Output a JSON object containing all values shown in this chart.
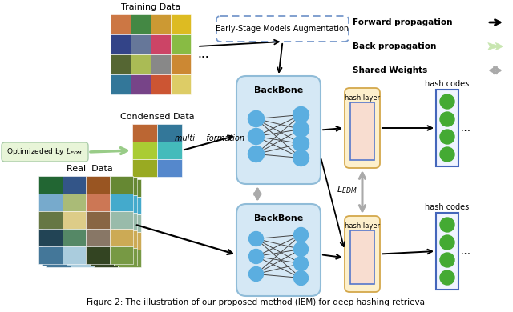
{
  "title": "Figure 2: The illustration of our proposed method (IEM) for deep hashing retrieval",
  "bg_color": "#ffffff",
  "legend_items": [
    {
      "label": "Forward propagation",
      "color": "#111111",
      "style": "forward"
    },
    {
      "label": "Back propagation",
      "color": "#c8e6b0",
      "style": "back"
    },
    {
      "label": "Shared Weights",
      "color": "#aaaaaa",
      "style": "shared"
    }
  ],
  "early_stage_text": "Early-Stage Models Augmentation",
  "backbone_label": "BackBone",
  "hash_layer_label": "hash layer",
  "hash_codes_label": "hash codes",
  "optimized_label": "Optimizeded by $L_{EDM}$",
  "condensed_label": "Condensed Data",
  "real_label": "Real  Data",
  "training_label": "Training Data",
  "multi_formation": "multi − formation",
  "ledm_label": "$L_{EDM}$",
  "node_color": "#5baee0",
  "backbone_face": "#d5e8f5",
  "backbone_edge": "#90bcd8",
  "hashlayer_face": "#fdf0cc",
  "hashlayer_edge": "#d4a84b",
  "inner_rect_face": "#f8ddd0",
  "inner_rect_edge": "#5577cc",
  "hashcode_box_face": "#f0f4ff",
  "hashcode_box_edge": "#4466bb",
  "hashcode_dot": "#44aa33",
  "opt_box_face": "#e8f5d8",
  "opt_box_edge": "#aaccaa",
  "es_box_face": "#ffffff",
  "es_box_edge": "#7799cc"
}
